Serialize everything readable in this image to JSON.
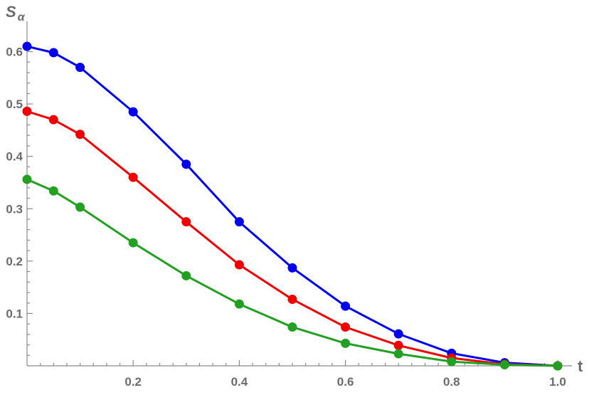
{
  "chart_data": {
    "type": "line",
    "ylabel": "S",
    "ylabel_sub": "α",
    "xlabel": "t",
    "xlim": [
      0,
      1.0
    ],
    "ylim": [
      0,
      0.63
    ],
    "x_ticks_major": [
      0.2,
      0.4,
      0.6,
      0.8,
      1.0
    ],
    "x_tick_labels": [
      "0.2",
      "0.4",
      "0.6",
      "0.8",
      "1.0"
    ],
    "y_ticks_major": [
      0.1,
      0.2,
      0.3,
      0.4,
      0.5,
      0.6
    ],
    "y_tick_labels": [
      "0.1",
      "0.2",
      "0.3",
      "0.4",
      "0.5",
      "0.6"
    ],
    "grid": false,
    "x": [
      0,
      0.05,
      0.1,
      0.2,
      0.3,
      0.4,
      0.5,
      0.6,
      0.7,
      0.8,
      0.9,
      1.0
    ],
    "series": [
      {
        "color": "#0000ee",
        "values": [
          0.61,
          0.598,
          0.57,
          0.485,
          0.385,
          0.275,
          0.187,
          0.114,
          0.061,
          0.024,
          0.006,
          0.0
        ]
      },
      {
        "color": "#ee0000",
        "values": [
          0.486,
          0.47,
          0.442,
          0.36,
          0.275,
          0.193,
          0.127,
          0.074,
          0.039,
          0.015,
          0.003,
          0.0
        ]
      },
      {
        "color": "#22a022",
        "values": [
          0.356,
          0.334,
          0.303,
          0.235,
          0.172,
          0.118,
          0.074,
          0.043,
          0.023,
          0.008,
          0.002,
          0.0
        ]
      }
    ]
  }
}
